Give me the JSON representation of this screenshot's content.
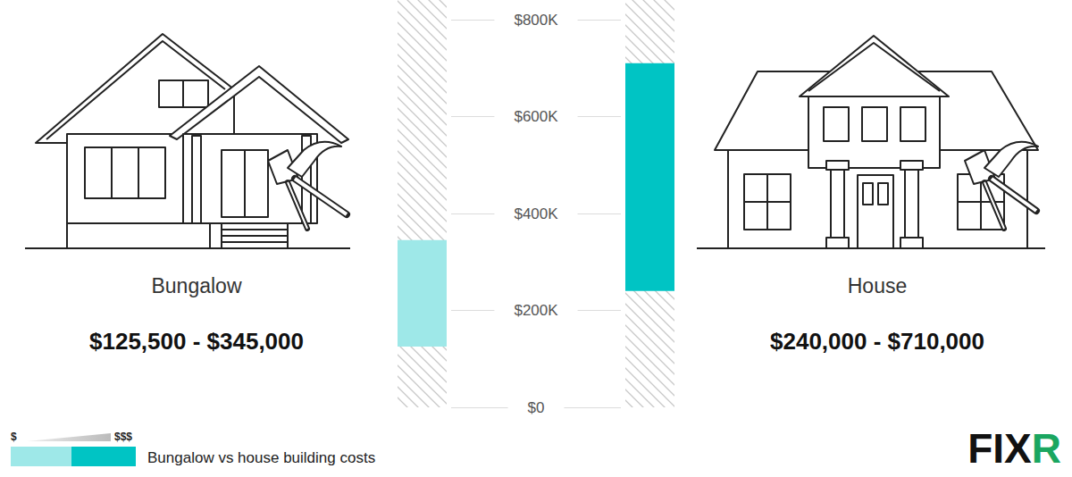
{
  "chart_data": {
    "type": "bar",
    "categories": [
      "Bungalow",
      "House"
    ],
    "low": [
      125500,
      240000
    ],
    "high": [
      345000,
      710000
    ],
    "range_labels": [
      "$125,500 - $345,000",
      "$240,000 - $710,000"
    ],
    "colors": [
      "#9ee8e8",
      "#00c4c4"
    ],
    "ylim": [
      0,
      800000
    ],
    "yticks": [
      {
        "value": 0,
        "label": "$0"
      },
      {
        "value": 200000,
        "label": "$200K"
      },
      {
        "value": 400000,
        "label": "$400K"
      },
      {
        "value": 600000,
        "label": "$600K"
      },
      {
        "value": 800000,
        "label": "$800K"
      }
    ],
    "grid": true,
    "legend": "bottom-left",
    "legend_text": {
      "low": "$",
      "high": "$$$",
      "caption": "Bungalow vs house building costs"
    },
    "logo": "FIXR"
  }
}
